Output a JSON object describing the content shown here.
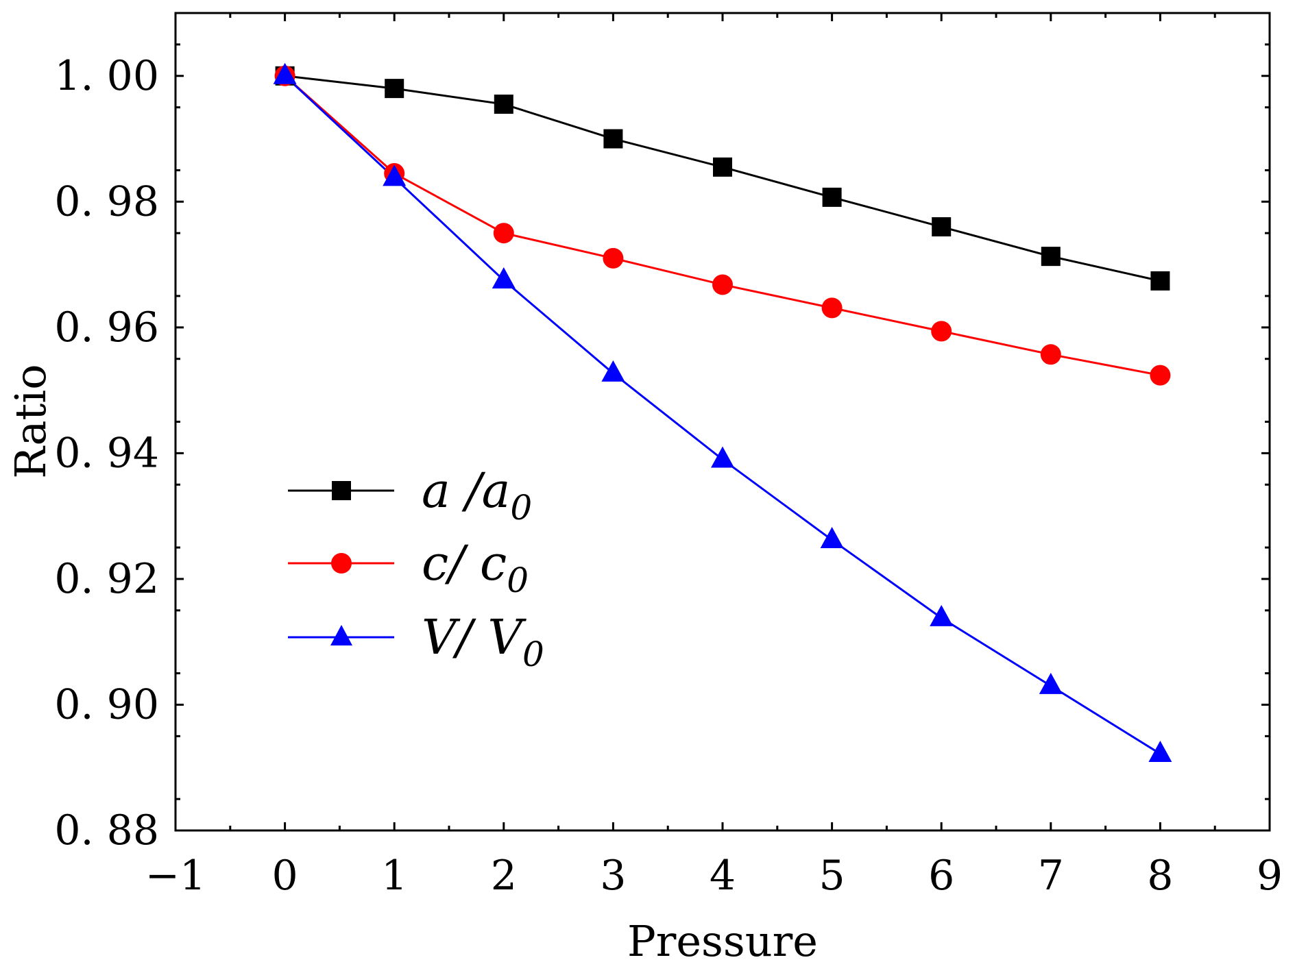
{
  "chart_data": {
    "type": "line",
    "title": "",
    "xlabel": "Pressure",
    "ylabel": "Ratio",
    "xlim": [
      -1,
      9
    ],
    "ylim": [
      0.88,
      1.01
    ],
    "xticks": [
      -1,
      0,
      1,
      2,
      3,
      4,
      5,
      6,
      7,
      8,
      9
    ],
    "xtick_labels": [
      "−1",
      "0",
      "1",
      "2",
      "3",
      "4",
      "5",
      "6",
      "7",
      "8",
      "9"
    ],
    "yticks": [
      0.88,
      0.9,
      0.92,
      0.94,
      0.96,
      0.98,
      1.0
    ],
    "ytick_labels": [
      "0. 88",
      "0. 90",
      "0. 92",
      "0. 94",
      "0. 96",
      "0. 98",
      "1. 00"
    ],
    "grid": false,
    "legend_position": "left-middle",
    "x": [
      0,
      1,
      2,
      3,
      4,
      5,
      6,
      7,
      8
    ],
    "series": [
      {
        "name": "a /a0",
        "label_main": "a  /a",
        "label_sub": "0",
        "color": "#000000",
        "marker": "square",
        "values": [
          1.0,
          0.998,
          0.9955,
          0.99,
          0.9855,
          0.9807,
          0.976,
          0.9713,
          0.9674
        ]
      },
      {
        "name": "c/ c0",
        "label_main": "c/  c",
        "label_sub": "0",
        "color": "#ff0000",
        "marker": "circle",
        "values": [
          1.0,
          0.9845,
          0.975,
          0.971,
          0.9668,
          0.9631,
          0.9594,
          0.9557,
          0.9524
        ]
      },
      {
        "name": "V/ V0",
        "label_main": "V/  V",
        "label_sub": "0",
        "color": "#0000ff",
        "marker": "triangle",
        "values": [
          1.0,
          0.9838,
          0.9675,
          0.9527,
          0.939,
          0.9262,
          0.9138,
          0.903,
          0.8922
        ]
      }
    ]
  }
}
